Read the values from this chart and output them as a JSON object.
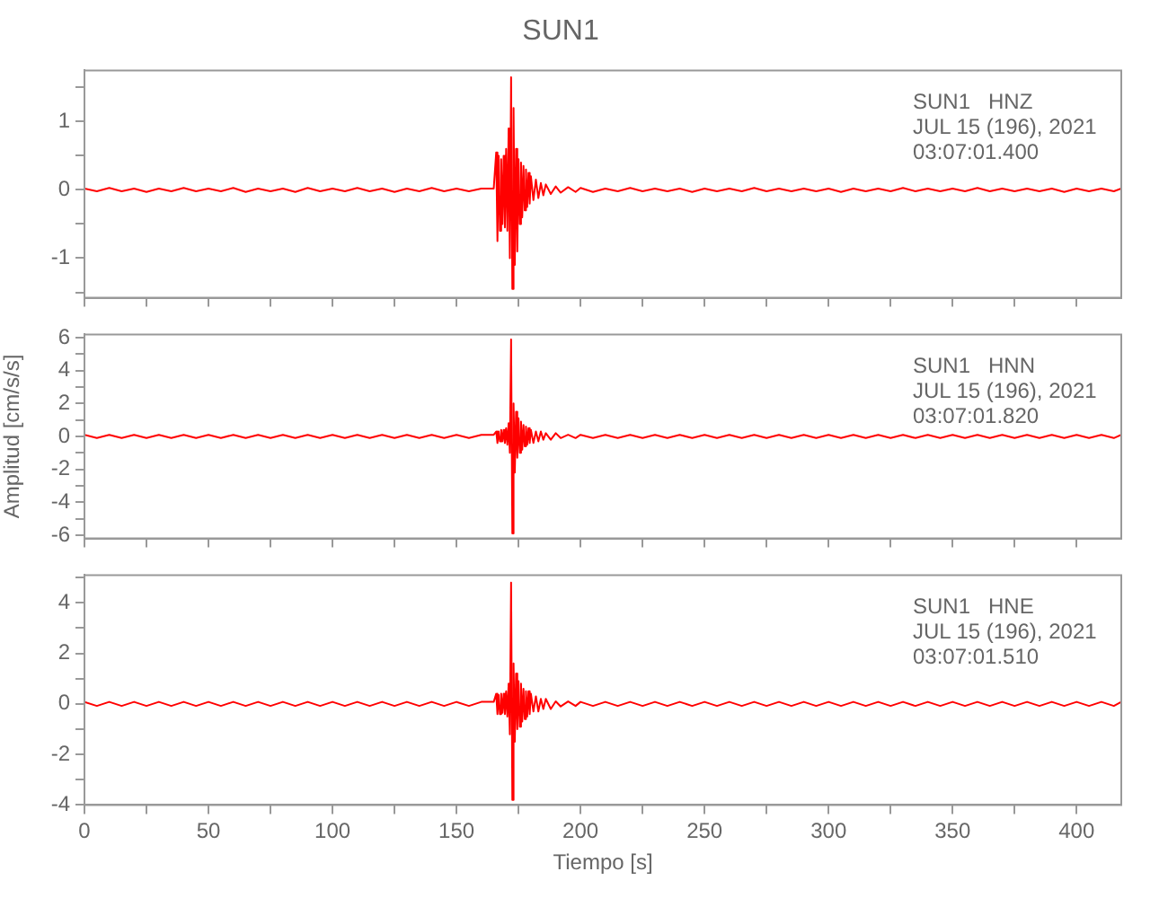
{
  "chart_data": [
    {
      "type": "line",
      "title": "SUN1",
      "annotations": [
        "SUN1   HNZ",
        "JUL 15 (196), 2021",
        "03:07:01.400"
      ],
      "x": [
        0,
        5,
        10,
        15,
        20,
        25,
        30,
        35,
        40,
        45,
        50,
        55,
        60,
        65,
        70,
        75,
        80,
        85,
        90,
        95,
        100,
        105,
        110,
        115,
        120,
        125,
        130,
        135,
        140,
        145,
        150,
        155,
        160,
        165,
        166,
        166.5,
        167,
        167.5,
        168,
        168.5,
        169,
        169.5,
        170,
        170.5,
        171,
        171.5,
        172,
        172.5,
        173,
        173.5,
        174,
        174.5,
        175,
        175.5,
        176,
        176.5,
        177,
        177.5,
        178,
        178.5,
        179,
        179.5,
        180,
        181,
        182,
        183,
        184,
        185,
        186,
        188,
        190,
        192,
        195,
        198,
        200,
        205,
        210,
        215,
        220,
        225,
        230,
        235,
        240,
        245,
        250,
        255,
        260,
        265,
        270,
        275,
        280,
        285,
        290,
        295,
        300,
        305,
        310,
        315,
        320,
        325,
        330,
        335,
        340,
        345,
        350,
        355,
        360,
        365,
        370,
        375,
        380,
        385,
        390,
        395,
        400,
        405,
        410,
        415,
        418
      ],
      "series": [
        {
          "color": "#ff0000",
          "values": [
            0.02,
            -0.02,
            0.03,
            -0.02,
            0.02,
            -0.03,
            0.02,
            -0.02,
            0.03,
            -0.02,
            0.02,
            -0.02,
            0.03,
            -0.03,
            0.02,
            -0.02,
            0.02,
            -0.03,
            0.03,
            -0.02,
            0.02,
            -0.02,
            0.03,
            -0.02,
            0.02,
            -0.03,
            0.02,
            -0.02,
            0.03,
            -0.02,
            0.02,
            -0.02,
            0.02,
            0.02,
            0.55,
            -0.75,
            0.5,
            -0.6,
            0.45,
            -0.5,
            0.5,
            -0.55,
            0.6,
            -0.6,
            0.9,
            -1.0,
            1.65,
            -1.45,
            1.2,
            -1.1,
            0.6,
            -0.9,
            0.45,
            -0.5,
            0.4,
            -0.4,
            0.35,
            -0.3,
            0.3,
            -0.25,
            0.25,
            -0.2,
            0.2,
            -0.15,
            0.15,
            -0.12,
            0.1,
            -0.08,
            0.08,
            -0.06,
            0.05,
            -0.04,
            0.04,
            -0.03,
            0.03,
            -0.03,
            0.02,
            -0.02,
            0.03,
            -0.02,
            0.02,
            -0.02,
            0.02,
            -0.03,
            0.02,
            -0.02,
            0.02,
            -0.02,
            0.03,
            -0.02,
            0.02,
            -0.02,
            0.02,
            -0.02,
            0.02,
            -0.03,
            0.02,
            -0.02,
            0.02,
            -0.02,
            0.03,
            -0.02,
            0.02,
            -0.02,
            0.02,
            -0.02,
            0.03,
            -0.02,
            0.02,
            -0.02,
            0.02,
            -0.02,
            0.02,
            -0.03,
            0.02,
            -0.02,
            0.02,
            -0.02,
            0.02
          ]
        }
      ],
      "xlim": [
        0,
        418
      ],
      "xticks": [
        0,
        {
          "value": 25,
          "label": null
        },
        50,
        {
          "value": 75,
          "label": null
        },
        100,
        {
          "value": 125,
          "label": null
        },
        150,
        {
          "value": 175,
          "label": null
        },
        200,
        {
          "value": 225,
          "label": null
        },
        250,
        {
          "value": 275,
          "label": null
        },
        300,
        {
          "value": 325,
          "label": null
        },
        350,
        {
          "value": 375,
          "label": null
        },
        400
      ],
      "ylim": [
        -1.58,
        1.75
      ],
      "yticks": [
        {
          "value": -1.5,
          "label": null
        },
        -1,
        {
          "value": -0.5,
          "label": null
        },
        0,
        {
          "value": 0.5,
          "label": null
        },
        1,
        {
          "value": 1.5,
          "label": null
        }
      ],
      "tick_labels": "y"
    },
    {
      "type": "line",
      "ylabel": "Amplitud [cm/s/s]",
      "annotations": [
        "SUN1   HNN",
        "JUL 15 (196), 2021",
        "03:07:01.820"
      ],
      "x": [
        0,
        5,
        10,
        15,
        20,
        25,
        30,
        35,
        40,
        45,
        50,
        55,
        60,
        65,
        70,
        75,
        80,
        85,
        90,
        95,
        100,
        105,
        110,
        115,
        120,
        125,
        130,
        135,
        140,
        145,
        150,
        155,
        160,
        165,
        166,
        166.5,
        167,
        167.5,
        168,
        168.5,
        169,
        169.5,
        170,
        170.5,
        171,
        171.5,
        172,
        172.5,
        173,
        173.5,
        174,
        174.5,
        175,
        175.5,
        176,
        176.5,
        177,
        177.5,
        178,
        178.5,
        179,
        179.5,
        180,
        181,
        182,
        183,
        184,
        185,
        186,
        188,
        190,
        192,
        195,
        198,
        200,
        205,
        210,
        215,
        220,
        225,
        230,
        235,
        240,
        245,
        250,
        255,
        260,
        265,
        270,
        275,
        280,
        285,
        290,
        295,
        300,
        305,
        310,
        315,
        320,
        325,
        330,
        335,
        340,
        345,
        350,
        355,
        360,
        365,
        370,
        375,
        380,
        385,
        390,
        395,
        400,
        405,
        410,
        415,
        418
      ],
      "series": [
        {
          "color": "#ff0000",
          "values": [
            0.1,
            -0.1,
            0.1,
            -0.1,
            0.1,
            -0.1,
            0.1,
            -0.1,
            0.1,
            -0.1,
            0.1,
            -0.1,
            0.1,
            -0.1,
            0.1,
            -0.1,
            0.1,
            -0.1,
            0.1,
            -0.1,
            0.1,
            -0.1,
            0.1,
            -0.1,
            0.1,
            -0.1,
            0.1,
            -0.1,
            0.1,
            -0.1,
            0.1,
            -0.1,
            0.1,
            0.1,
            0.3,
            -0.4,
            0.3,
            -0.3,
            0.4,
            -0.3,
            0.4,
            -0.4,
            0.5,
            -0.5,
            0.8,
            -1.0,
            5.9,
            -5.9,
            2.0,
            -2.2,
            1.5,
            -1.3,
            1.1,
            -1.0,
            0.9,
            -0.8,
            0.7,
            -0.6,
            0.6,
            -0.5,
            0.5,
            -0.4,
            0.4,
            -0.4,
            0.3,
            -0.3,
            0.3,
            -0.2,
            0.2,
            -0.2,
            0.2,
            -0.1,
            0.1,
            -0.1,
            0.1,
            -0.1,
            0.1,
            -0.1,
            0.1,
            -0.1,
            0.1,
            -0.1,
            0.1,
            -0.1,
            0.1,
            -0.1,
            0.1,
            -0.1,
            0.1,
            -0.1,
            0.1,
            -0.1,
            0.1,
            -0.1,
            0.1,
            -0.1,
            0.1,
            -0.1,
            0.1,
            -0.1,
            0.1,
            -0.1,
            0.1,
            -0.1,
            0.1,
            -0.1,
            0.1,
            -0.1,
            0.1,
            -0.1,
            0.1,
            -0.1,
            0.1,
            -0.1,
            0.1,
            -0.1,
            0.1,
            -0.1,
            0.1
          ]
        }
      ],
      "xlim": [
        0,
        418
      ],
      "xticks": [
        0,
        {
          "value": 25,
          "label": null
        },
        50,
        {
          "value": 75,
          "label": null
        },
        100,
        {
          "value": 125,
          "label": null
        },
        150,
        {
          "value": 175,
          "label": null
        },
        200,
        {
          "value": 225,
          "label": null
        },
        250,
        {
          "value": 275,
          "label": null
        },
        300,
        {
          "value": 325,
          "label": null
        },
        350,
        {
          "value": 375,
          "label": null
        },
        400
      ],
      "ylim": [
        -6.2,
        6.2
      ],
      "yticks": [
        -6,
        {
          "value": -5,
          "label": null
        },
        -4,
        {
          "value": -3,
          "label": null
        },
        -2,
        {
          "value": -1,
          "label": null
        },
        0,
        {
          "value": 1,
          "label": null
        },
        2,
        {
          "value": 3,
          "label": null
        },
        4,
        {
          "value": 5,
          "label": null
        },
        6
      ],
      "tick_labels": "y"
    },
    {
      "type": "line",
      "xlabel": "Tiempo [s]",
      "annotations": [
        "SUN1   HNE",
        "JUL 15 (196), 2021",
        "03:07:01.510"
      ],
      "x": [
        0,
        5,
        10,
        15,
        20,
        25,
        30,
        35,
        40,
        45,
        50,
        55,
        60,
        65,
        70,
        75,
        80,
        85,
        90,
        95,
        100,
        105,
        110,
        115,
        120,
        125,
        130,
        135,
        140,
        145,
        150,
        155,
        160,
        165,
        166,
        166.5,
        167,
        167.5,
        168,
        168.5,
        169,
        169.5,
        170,
        170.5,
        171,
        171.5,
        172,
        172.5,
        173,
        173.5,
        174,
        174.5,
        175,
        175.5,
        176,
        176.5,
        177,
        177.5,
        178,
        178.5,
        179,
        179.5,
        180,
        181,
        182,
        183,
        184,
        185,
        186,
        188,
        190,
        192,
        195,
        198,
        200,
        205,
        210,
        215,
        220,
        225,
        230,
        235,
        240,
        245,
        250,
        255,
        260,
        265,
        270,
        275,
        280,
        285,
        290,
        295,
        300,
        305,
        310,
        315,
        320,
        325,
        330,
        335,
        340,
        345,
        350,
        355,
        360,
        365,
        370,
        375,
        380,
        385,
        390,
        395,
        400,
        405,
        410,
        415,
        418
      ],
      "series": [
        {
          "color": "#ff0000",
          "values": [
            0.08,
            -0.08,
            0.08,
            -0.08,
            0.08,
            -0.08,
            0.08,
            -0.08,
            0.08,
            -0.08,
            0.08,
            -0.08,
            0.08,
            -0.08,
            0.08,
            -0.08,
            0.08,
            -0.08,
            0.08,
            -0.08,
            0.08,
            -0.08,
            0.08,
            -0.08,
            0.08,
            -0.08,
            0.08,
            -0.08,
            0.08,
            -0.08,
            0.08,
            -0.08,
            0.08,
            0.08,
            0.4,
            -0.4,
            0.35,
            -0.4,
            0.4,
            -0.35,
            0.4,
            -0.4,
            0.5,
            -0.5,
            0.8,
            -1.2,
            4.8,
            -3.8,
            1.6,
            -1.5,
            1.2,
            -1.0,
            0.9,
            -0.9,
            0.8,
            -0.7,
            0.6,
            -0.6,
            0.5,
            -0.5,
            0.5,
            -0.4,
            0.4,
            -0.3,
            0.3,
            -0.3,
            0.2,
            -0.2,
            0.2,
            -0.2,
            0.1,
            -0.1,
            0.1,
            -0.08,
            0.08,
            -0.08,
            0.08,
            -0.08,
            0.08,
            -0.08,
            0.08,
            -0.08,
            0.08,
            -0.08,
            0.08,
            -0.08,
            0.08,
            -0.08,
            0.08,
            -0.08,
            0.08,
            -0.08,
            0.08,
            -0.08,
            0.08,
            -0.08,
            0.08,
            -0.08,
            0.08,
            -0.08,
            0.08,
            -0.08,
            0.08,
            -0.08,
            0.08,
            -0.08,
            0.08,
            -0.08,
            0.08,
            -0.08,
            0.08,
            -0.08,
            0.08,
            -0.08,
            0.08,
            -0.08,
            0.08,
            -0.08,
            0.08
          ]
        }
      ],
      "xlim": [
        0,
        418
      ],
      "xticks": [
        0,
        {
          "value": 25,
          "label": null
        },
        50,
        {
          "value": 75,
          "label": null
        },
        100,
        {
          "value": 125,
          "label": null
        },
        150,
        {
          "value": 175,
          "label": null
        },
        200,
        {
          "value": 225,
          "label": null
        },
        250,
        {
          "value": 275,
          "label": null
        },
        300,
        {
          "value": 325,
          "label": null
        },
        350,
        {
          "value": 375,
          "label": null
        },
        400
      ],
      "ylim": [
        -4,
        5.1
      ],
      "yticks": [
        -4,
        {
          "value": -3,
          "label": null
        },
        -2,
        {
          "value": -1,
          "label": null
        },
        0,
        {
          "value": 1,
          "label": null
        },
        2,
        {
          "value": 3,
          "label": null
        },
        4,
        {
          "value": 5,
          "label": null
        }
      ]
    }
  ]
}
